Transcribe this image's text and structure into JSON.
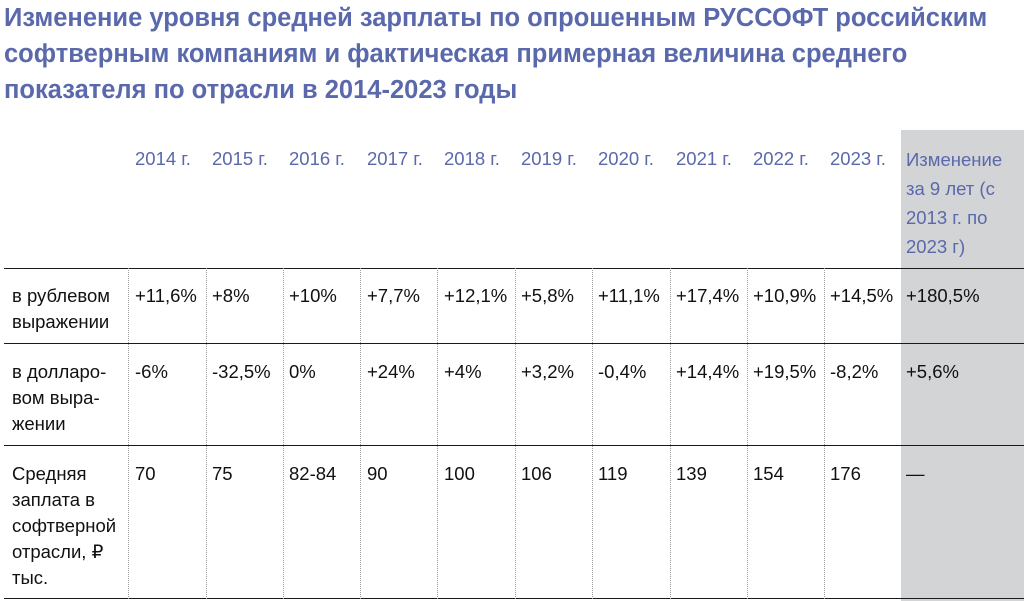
{
  "title": "Изменение уровня средней зарплаты по опрошенным РУССОФТ российским софтверным компаниям и фактическая примерная величина среднего показателя по отрасли в 2014-2023 годы",
  "table": {
    "headers": [
      "2014 г.",
      "2015 г.",
      "2016 г.",
      "2017 г.",
      "2018 г.",
      "2019 г.",
      "2020 г.",
      "2021 г.",
      "2022 г.",
      "2023 г.",
      "Изменение за 9 лет (с 2013 г. по 2023 г)"
    ],
    "rows": [
      {
        "label": "в рублевом выражении",
        "cells": [
          "+11,6%",
          "+8%",
          "+10%",
          "+7,7%",
          "+12,1%",
          "+5,8%",
          "+11,1%",
          "+17,4%",
          "+10,9%",
          "+14,5%",
          "+180,5%"
        ]
      },
      {
        "label": "в долларо-вом выра-жении",
        "cells": [
          "-6%",
          "-32,5%",
          "0%",
          "+24%",
          "+4%",
          "+3,2%",
          "-0,4%",
          "+14,4%",
          "+19,5%",
          "-8,2%",
          "+5,6%"
        ]
      },
      {
        "label": "Средняя заплата в софтверной отрасли, ₽ тыс.",
        "cells": [
          "70",
          "75",
          "82-84",
          "90",
          "100",
          "106",
          "119",
          "139",
          "154",
          "176",
          "—"
        ]
      }
    ]
  },
  "colors": {
    "title": "#5A68AC",
    "header": "#5A68AC",
    "highlight_column": "#D3D4D6"
  }
}
